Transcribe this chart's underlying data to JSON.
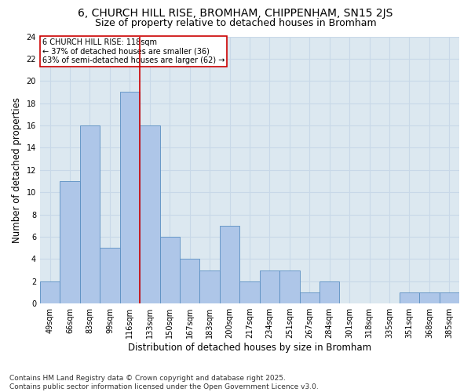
{
  "title1": "6, CHURCH HILL RISE, BROMHAM, CHIPPENHAM, SN15 2JS",
  "title2": "Size of property relative to detached houses in Bromham",
  "xlabel": "Distribution of detached houses by size in Bromham",
  "ylabel": "Number of detached properties",
  "categories": [
    "49sqm",
    "66sqm",
    "83sqm",
    "99sqm",
    "116sqm",
    "133sqm",
    "150sqm",
    "167sqm",
    "183sqm",
    "200sqm",
    "217sqm",
    "234sqm",
    "251sqm",
    "267sqm",
    "284sqm",
    "301sqm",
    "318sqm",
    "335sqm",
    "351sqm",
    "368sqm",
    "385sqm"
  ],
  "values": [
    2,
    11,
    16,
    5,
    19,
    16,
    6,
    4,
    3,
    7,
    2,
    3,
    3,
    1,
    2,
    0,
    0,
    0,
    1,
    1,
    1
  ],
  "bar_color": "#aec6e8",
  "bar_edge_color": "#5a8fc2",
  "vline_x": 4.5,
  "vline_color": "#cc0000",
  "annotation_text": "6 CHURCH HILL RISE: 118sqm\n← 37% of detached houses are smaller (36)\n63% of semi-detached houses are larger (62) →",
  "annotation_box_color": "#ffffff",
  "annotation_box_edge": "#cc0000",
  "ylim": [
    0,
    24
  ],
  "yticks": [
    0,
    2,
    4,
    6,
    8,
    10,
    12,
    14,
    16,
    18,
    20,
    22,
    24
  ],
  "grid_color": "#c8d8e8",
  "background_color": "#dce8f0",
  "footer": "Contains HM Land Registry data © Crown copyright and database right 2025.\nContains public sector information licensed under the Open Government Licence v3.0.",
  "title1_fontsize": 10,
  "title2_fontsize": 9,
  "axis_label_fontsize": 8.5,
  "tick_fontsize": 7,
  "annotation_fontsize": 7,
  "footer_fontsize": 6.5
}
